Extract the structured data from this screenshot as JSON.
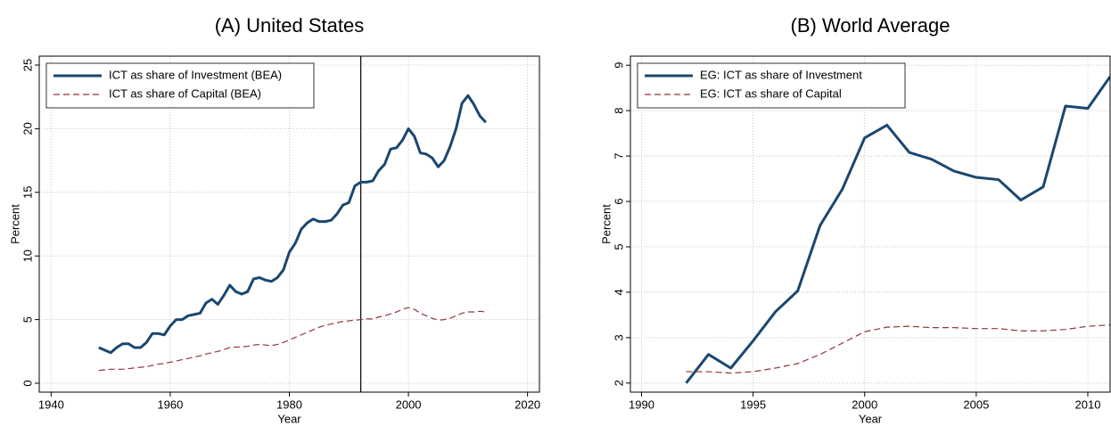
{
  "chart_data": [
    {
      "type": "line",
      "title": "(A) United States",
      "xlabel": "Year",
      "ylabel": "Percent",
      "x": [
        1948,
        1949,
        1950,
        1951,
        1952,
        1953,
        1954,
        1955,
        1956,
        1957,
        1958,
        1959,
        1960,
        1961,
        1962,
        1963,
        1964,
        1965,
        1966,
        1967,
        1968,
        1969,
        1970,
        1971,
        1972,
        1973,
        1974,
        1975,
        1976,
        1977,
        1978,
        1979,
        1980,
        1981,
        1982,
        1983,
        1984,
        1985,
        1986,
        1987,
        1988,
        1989,
        1990,
        1991,
        1992,
        1993,
        1994,
        1995,
        1996,
        1997,
        1998,
        1999,
        2000,
        2001,
        2002,
        2003,
        2004,
        2005,
        2006,
        2007,
        2008,
        2009,
        2010,
        2011,
        2012,
        2013
      ],
      "series": [
        {
          "name": "ICT as share of Investment (BEA)",
          "color": "#1a476f",
          "dash": false,
          "values": [
            2.8,
            2.6,
            2.4,
            2.8,
            3.1,
            3.1,
            2.8,
            2.8,
            3.2,
            3.9,
            3.9,
            3.8,
            4.5,
            5.0,
            5.0,
            5.3,
            5.4,
            5.5,
            6.3,
            6.6,
            6.2,
            6.9,
            7.7,
            7.2,
            7.0,
            7.2,
            8.2,
            8.3,
            8.1,
            8.0,
            8.3,
            8.9,
            10.3,
            11.0,
            12.1,
            12.6,
            12.9,
            12.7,
            12.7,
            12.8,
            13.3,
            14.0,
            14.2,
            15.5,
            15.8,
            15.8,
            15.9,
            16.7,
            17.2,
            18.4,
            18.5,
            19.1,
            20.0,
            19.4,
            18.1,
            18.0,
            17.7,
            17.0,
            17.5,
            18.6,
            20.0,
            22.0,
            22.6,
            21.9,
            21.0,
            20.5
          ]
        },
        {
          "name": "ICT as share of Capital (BEA)",
          "color": "#90353b",
          "dash": true,
          "values": [
            1.0,
            1.05,
            1.1,
            1.1,
            1.1,
            1.15,
            1.2,
            1.25,
            1.3,
            1.4,
            1.5,
            1.55,
            1.65,
            1.75,
            1.85,
            1.95,
            2.05,
            2.15,
            2.3,
            2.4,
            2.5,
            2.65,
            2.8,
            2.85,
            2.85,
            2.9,
            3.0,
            3.05,
            3.0,
            2.95,
            3.05,
            3.2,
            3.4,
            3.6,
            3.8,
            4.0,
            4.2,
            4.4,
            4.55,
            4.65,
            4.75,
            4.85,
            4.9,
            4.95,
            5.0,
            5.05,
            5.05,
            5.2,
            5.3,
            5.45,
            5.6,
            5.8,
            5.95,
            5.8,
            5.5,
            5.3,
            5.1,
            4.95,
            5.0,
            5.1,
            5.3,
            5.5,
            5.6,
            5.6,
            5.65,
            5.6
          ]
        }
      ],
      "xlim": [
        1938,
        2022
      ],
      "ylim": [
        -0.7,
        25.7
      ],
      "xticks": [
        1940,
        1960,
        1980,
        2000,
        2020
      ],
      "yticks": [
        0,
        5,
        10,
        15,
        20,
        25
      ],
      "vline": 1992,
      "grid": true,
      "legend": "upper left"
    },
    {
      "type": "line",
      "title": "(B) World Average",
      "xlabel": "Year",
      "ylabel": "Percent",
      "x": [
        1992,
        1993,
        1994,
        1995,
        1996,
        1997,
        1998,
        1999,
        2000,
        2001,
        2002,
        2003,
        2004,
        2005,
        2006,
        2007,
        2008,
        2009,
        2010,
        2011
      ],
      "series": [
        {
          "name": "EG: ICT as share of Investment",
          "color": "#1a476f",
          "dash": false,
          "values": [
            2.0,
            2.63,
            2.33,
            2.93,
            3.57,
            4.03,
            5.47,
            6.27,
            7.4,
            7.68,
            7.08,
            6.93,
            6.67,
            6.53,
            6.48,
            6.03,
            6.32,
            8.1,
            8.05,
            8.75
          ]
        },
        {
          "name": "EG: ICT as share of Capital",
          "color": "#90353b",
          "dash": true,
          "values": [
            2.25,
            2.25,
            2.22,
            2.25,
            2.33,
            2.43,
            2.63,
            2.88,
            3.13,
            3.23,
            3.25,
            3.22,
            3.22,
            3.2,
            3.2,
            3.15,
            3.15,
            3.18,
            3.25,
            3.28
          ]
        }
      ],
      "xlim": [
        1989.5,
        2011
      ],
      "ylim": [
        1.8,
        9.2
      ],
      "xticks": [
        1990,
        1995,
        2000,
        2005,
        2010
      ],
      "yticks": [
        2,
        3,
        4,
        5,
        6,
        7,
        8,
        9
      ],
      "grid": true,
      "legend": "upper left"
    }
  ]
}
